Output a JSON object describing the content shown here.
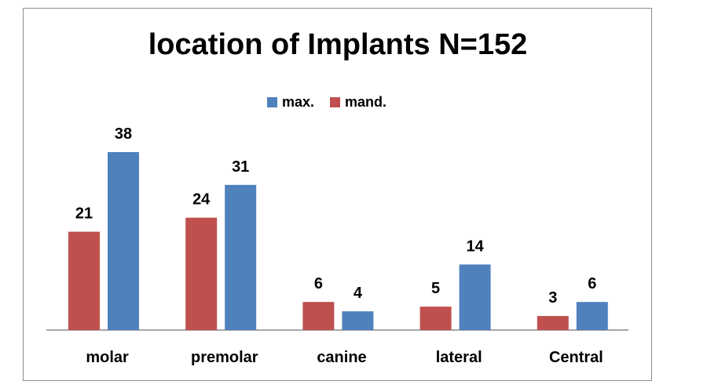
{
  "chart_data": {
    "type": "bar",
    "title": "location of Implants N=152",
    "categories": [
      "molar",
      "premolar",
      "canine",
      "lateral",
      "Central"
    ],
    "series": [
      {
        "name": "mand.",
        "color": "#c0504d",
        "values": [
          21,
          24,
          6,
          5,
          3
        ]
      },
      {
        "name": "max.",
        "color": "#4f81bd",
        "values": [
          38,
          31,
          4,
          14,
          6
        ]
      }
    ],
    "legend_order": [
      "max.",
      "mand."
    ],
    "legend_position": "top",
    "ylim": [
      0,
      40
    ],
    "grid": false,
    "xlabel": "",
    "ylabel": ""
  }
}
